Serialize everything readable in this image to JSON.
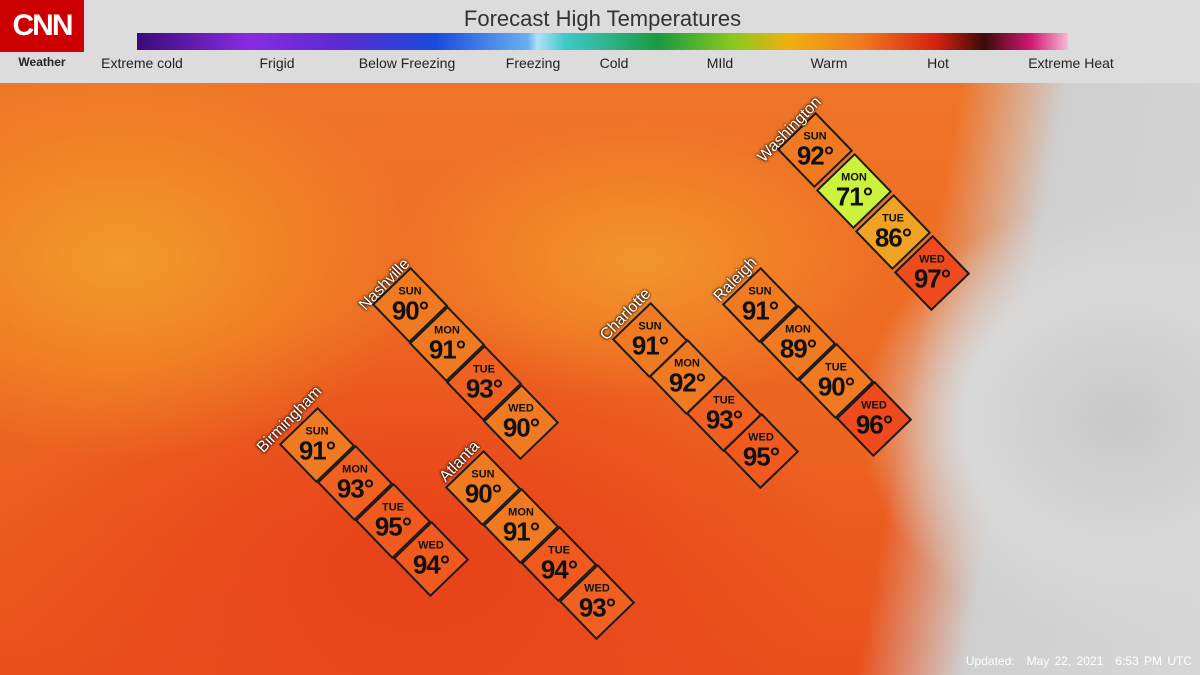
{
  "header": {
    "logo": "CNN",
    "logo_subtitle": "Weather",
    "title": "Forecast High Temperatures",
    "legend": [
      "Extreme cold",
      "Frigid",
      "Below Freezing",
      "Freezing",
      "Cold",
      "MIld",
      "Warm",
      "Hot",
      "Extreme Heat"
    ]
  },
  "cities": [
    {
      "name": "Washington",
      "days": [
        {
          "day": "SUN",
          "temp": "92°",
          "color": "#f07a22"
        },
        {
          "day": "MON",
          "temp": "71°",
          "color": "#cbf23c"
        },
        {
          "day": "TUE",
          "temp": "86°",
          "color": "#f0a224"
        },
        {
          "day": "WED",
          "temp": "97°",
          "color": "#ee4a1e"
        }
      ]
    },
    {
      "name": "Nashville",
      "days": [
        {
          "day": "SUN",
          "temp": "90°",
          "color": "#f07a22"
        },
        {
          "day": "MON",
          "temp": "91°",
          "color": "#f07a22"
        },
        {
          "day": "TUE",
          "temp": "93°",
          "color": "#f06020"
        },
        {
          "day": "WED",
          "temp": "90°",
          "color": "#f07a22"
        }
      ]
    },
    {
      "name": "Birmingham",
      "days": [
        {
          "day": "SUN",
          "temp": "91°",
          "color": "#f07a22"
        },
        {
          "day": "MON",
          "temp": "93°",
          "color": "#f06020"
        },
        {
          "day": "TUE",
          "temp": "95°",
          "color": "#f05a1e"
        },
        {
          "day": "WED",
          "temp": "94°",
          "color": "#f05a1e"
        }
      ]
    },
    {
      "name": "Atlanta",
      "days": [
        {
          "day": "SUN",
          "temp": "90°",
          "color": "#f07a22"
        },
        {
          "day": "MON",
          "temp": "91°",
          "color": "#f07a22"
        },
        {
          "day": "TUE",
          "temp": "94°",
          "color": "#f05a1e"
        },
        {
          "day": "WED",
          "temp": "93°",
          "color": "#f06020"
        }
      ]
    },
    {
      "name": "Charlotte",
      "days": [
        {
          "day": "SUN",
          "temp": "91°",
          "color": "#f07a22"
        },
        {
          "day": "MON",
          "temp": "92°",
          "color": "#f07a22"
        },
        {
          "day": "TUE",
          "temp": "93°",
          "color": "#f06020"
        },
        {
          "day": "WED",
          "temp": "95°",
          "color": "#f05a1e"
        }
      ]
    },
    {
      "name": "Raleigh",
      "days": [
        {
          "day": "SUN",
          "temp": "91°",
          "color": "#f07a22"
        },
        {
          "day": "MON",
          "temp": "89°",
          "color": "#f07a22"
        },
        {
          "day": "TUE",
          "temp": "90°",
          "color": "#f07a22"
        },
        {
          "day": "WED",
          "temp": "96°",
          "color": "#ee4a1e"
        }
      ]
    }
  ],
  "footer": {
    "label": "Updated:",
    "date": "May 22, 2021",
    "time": "6:53 PM UTC"
  }
}
